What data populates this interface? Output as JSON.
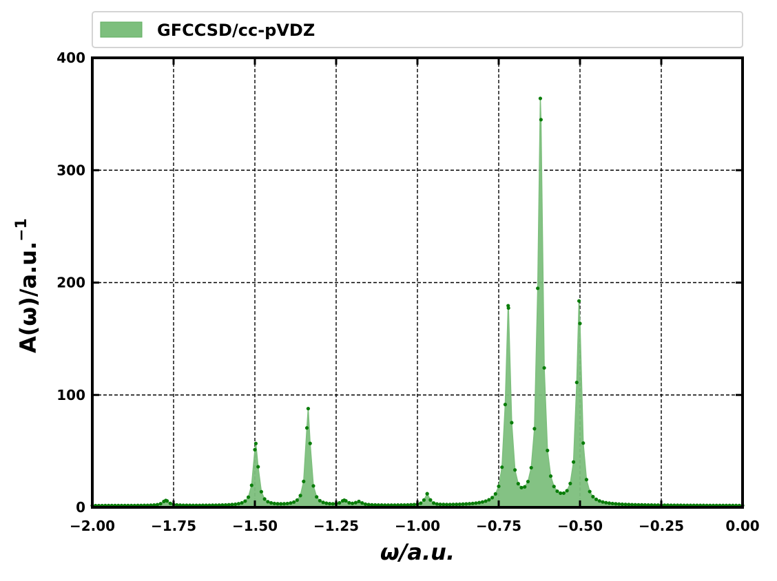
{
  "chart_data": {
    "type": "area",
    "xlabel": "ω/a.u.",
    "ylabel": "A(ω)/a.u.",
    "ylabel_superscript": "−1",
    "xlim": [
      -2.0,
      0.0
    ],
    "ylim": [
      0,
      400
    ],
    "x_ticks": [
      -2.0,
      -1.75,
      -1.5,
      -1.25,
      -1.0,
      -0.75,
      -0.5,
      -0.25,
      0.0
    ],
    "x_tick_labels": [
      "−2.00",
      "−1.75",
      "−1.50",
      "−1.25",
      "−1.00",
      "−0.75",
      "−0.50",
      "−0.25",
      "0.00"
    ],
    "y_ticks": [
      0,
      100,
      200,
      300,
      400
    ],
    "y_tick_labels": [
      "0",
      "100",
      "200",
      "300",
      "400"
    ],
    "grid": true,
    "legend": {
      "position": "top",
      "entries": [
        "GFCCSD/cc-pVDZ"
      ]
    },
    "colors": {
      "fill": "#7dbf7d",
      "line": "#7dbf7d",
      "marker": "#0a7d0a"
    },
    "series": [
      {
        "name": "GFCCSD/cc-pVDZ",
        "peaks": [
          {
            "x": -1.774,
            "height": 4.5,
            "width": 0.012
          },
          {
            "x": -1.497,
            "height": 55,
            "width": 0.009
          },
          {
            "x": -1.336,
            "height": 86,
            "width": 0.008
          },
          {
            "x": -1.225,
            "height": 4,
            "width": 0.012
          },
          {
            "x": -1.18,
            "height": 3,
            "width": 0.012
          },
          {
            "x": -0.97,
            "height": 10,
            "width": 0.009
          },
          {
            "x": -0.721,
            "height": 175,
            "width": 0.009
          },
          {
            "x": -0.622,
            "height": 360,
            "width": 0.0085
          },
          {
            "x": -0.503,
            "height": 180,
            "width": 0.0085
          }
        ],
        "baseline": 1.5,
        "step": 0.01
      }
    ]
  }
}
